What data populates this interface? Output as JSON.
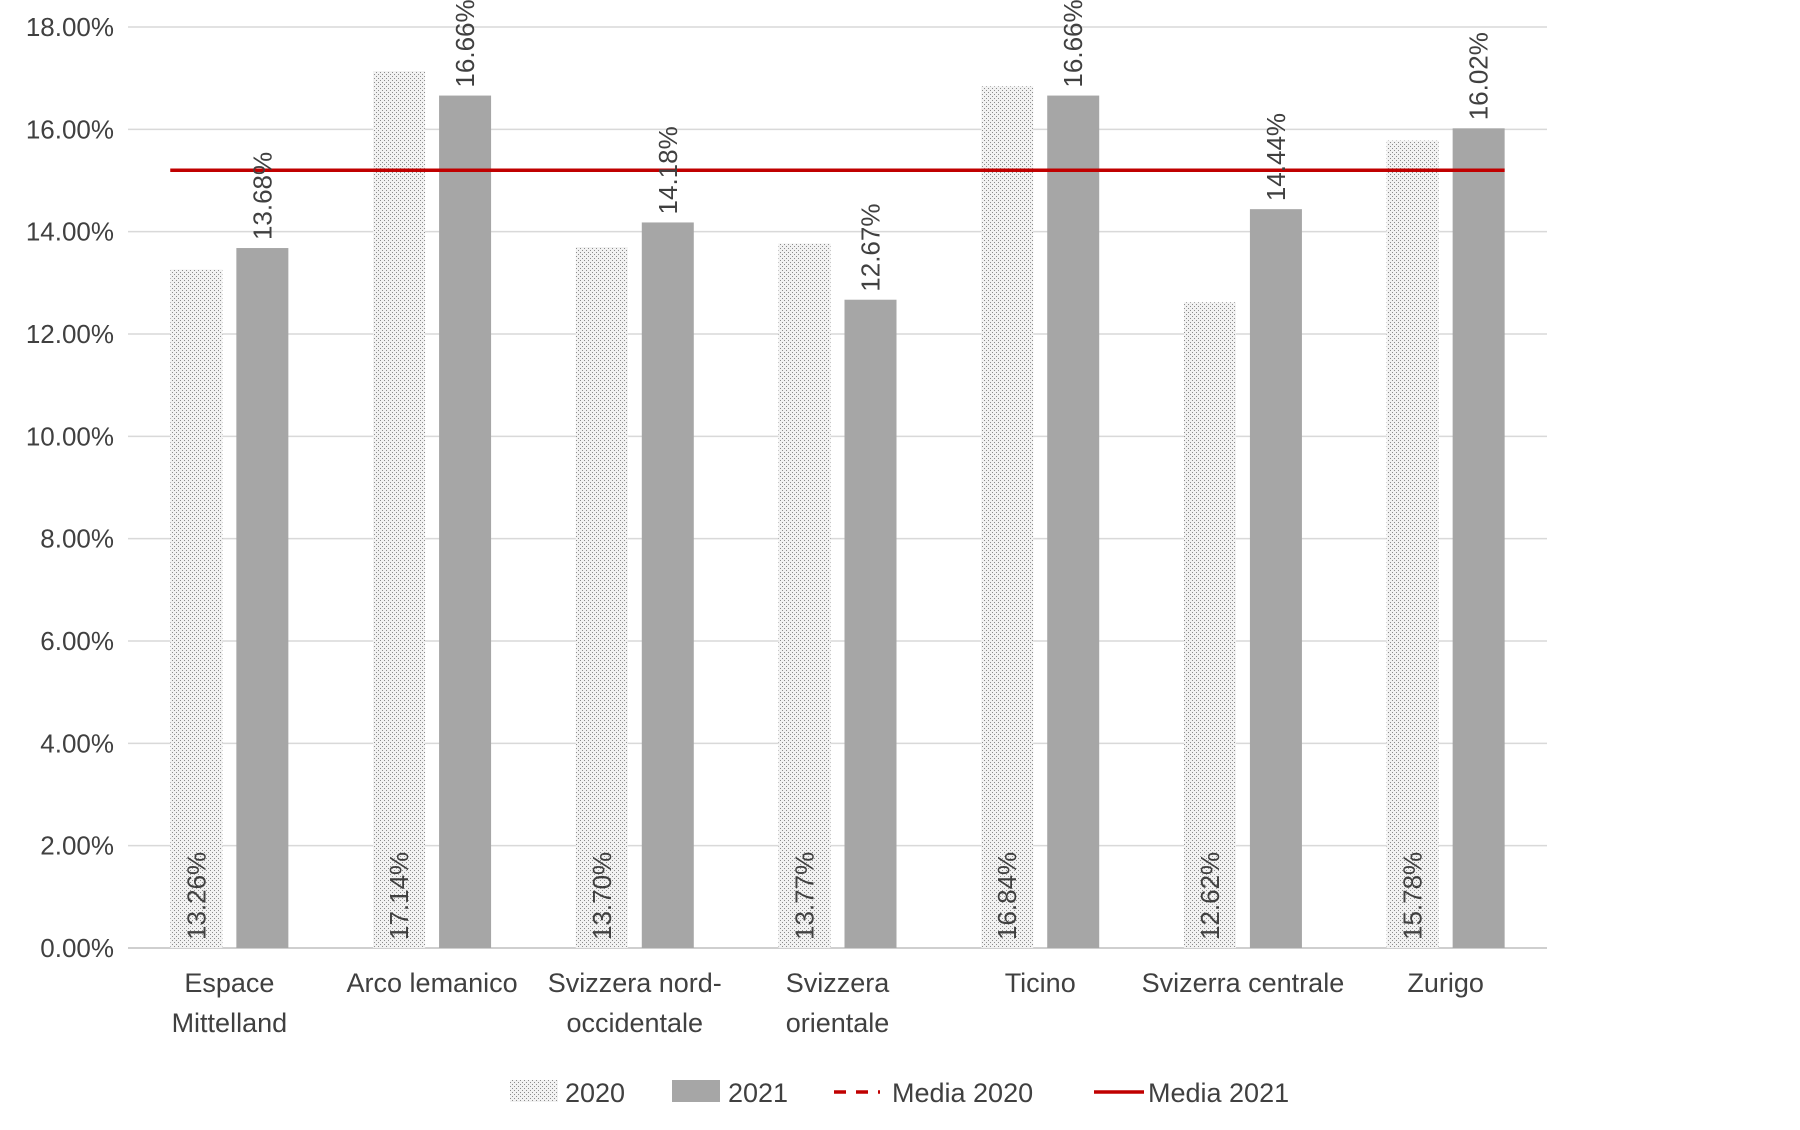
{
  "chart_data": {
    "type": "bar",
    "title": "",
    "xlabel": "",
    "ylabel": "",
    "ylim": [
      0,
      18
    ],
    "ytick_step": 2,
    "ytick_labels": [
      "0.00%",
      "2.00%",
      "4.00%",
      "6.00%",
      "8.00%",
      "10.00%",
      "12.00%",
      "14.00%",
      "16.00%",
      "18.00%"
    ],
    "grid": "horizontal",
    "legend_position": "bottom",
    "categories": [
      [
        "Espace",
        "Mittelland"
      ],
      [
        "Arco lemanico"
      ],
      [
        "Svizzera nord-",
        "occidentale"
      ],
      [
        "Svizzera",
        "orientale"
      ],
      [
        "Ticino"
      ],
      [
        "Svizerra centrale"
      ],
      [
        "Zurigo"
      ]
    ],
    "series": [
      {
        "name": "2020",
        "style": "dotted",
        "color": "#d9d9d9",
        "values": [
          13.26,
          17.14,
          13.7,
          13.77,
          16.84,
          12.62,
          15.78
        ],
        "labels": [
          "13.26%",
          "17.14%",
          "13.70%",
          "13.77%",
          "16.84%",
          "12.62%",
          "15.78%"
        ],
        "label_position": "inside-base"
      },
      {
        "name": "2021",
        "style": "solid",
        "color": "#a6a6a6",
        "values": [
          13.68,
          16.66,
          14.18,
          12.67,
          16.66,
          14.44,
          16.02
        ],
        "labels": [
          "13.68%",
          "16.66%",
          "14.18%",
          "12.67%",
          "16.66%",
          "14.44%",
          "16.02%"
        ],
        "label_position": "outside-end"
      }
    ],
    "lines": [
      {
        "name": "Media 2020",
        "style": "dashed",
        "color": "#c00000",
        "value": 15.2
      },
      {
        "name": "Media 2021",
        "style": "solid",
        "color": "#c00000",
        "value": 15.2
      }
    ]
  }
}
